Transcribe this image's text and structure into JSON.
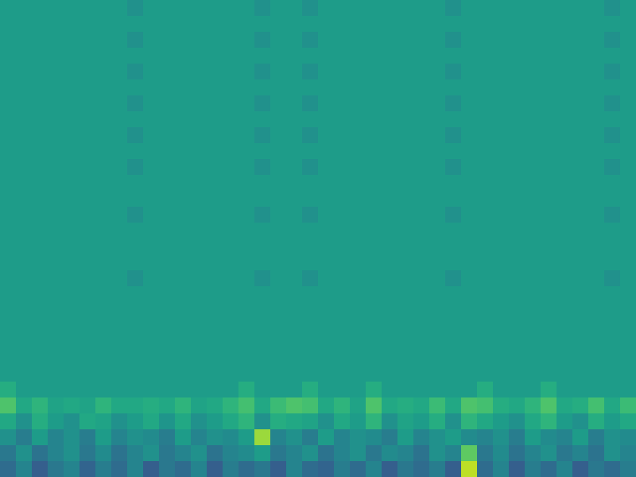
{
  "chart_data": {
    "type": "heatmap",
    "color": "viridis",
    "zlim": [
      0,
      1
    ],
    "tick_labels": false,
    "values": [
      [
        0.55,
        0.55,
        0.55,
        0.55,
        0.55,
        0.55,
        0.55,
        0.55,
        0.5,
        0.55,
        0.55,
        0.55,
        0.55,
        0.55,
        0.55,
        0.55,
        0.5,
        0.55,
        0.55,
        0.5,
        0.55,
        0.55,
        0.55,
        0.55,
        0.55,
        0.55,
        0.55,
        0.55,
        0.5,
        0.55,
        0.55,
        0.55,
        0.55,
        0.55,
        0.55,
        0.55,
        0.55,
        0.55,
        0.5,
        0.55
      ],
      [
        0.55,
        0.55,
        0.55,
        0.55,
        0.55,
        0.55,
        0.55,
        0.55,
        0.55,
        0.55,
        0.55,
        0.55,
        0.55,
        0.55,
        0.55,
        0.55,
        0.55,
        0.55,
        0.55,
        0.55,
        0.55,
        0.55,
        0.55,
        0.55,
        0.55,
        0.55,
        0.55,
        0.55,
        0.55,
        0.55,
        0.55,
        0.55,
        0.55,
        0.55,
        0.55,
        0.55,
        0.55,
        0.55,
        0.55,
        0.55
      ],
      [
        0.55,
        0.55,
        0.55,
        0.55,
        0.55,
        0.55,
        0.55,
        0.55,
        0.5,
        0.55,
        0.55,
        0.55,
        0.55,
        0.55,
        0.55,
        0.55,
        0.5,
        0.55,
        0.55,
        0.5,
        0.55,
        0.55,
        0.55,
        0.55,
        0.55,
        0.55,
        0.55,
        0.55,
        0.5,
        0.55,
        0.55,
        0.55,
        0.55,
        0.55,
        0.55,
        0.55,
        0.55,
        0.55,
        0.5,
        0.55
      ],
      [
        0.55,
        0.55,
        0.55,
        0.55,
        0.55,
        0.55,
        0.55,
        0.55,
        0.55,
        0.55,
        0.55,
        0.55,
        0.55,
        0.55,
        0.55,
        0.55,
        0.55,
        0.55,
        0.55,
        0.55,
        0.55,
        0.55,
        0.55,
        0.55,
        0.55,
        0.55,
        0.55,
        0.55,
        0.55,
        0.55,
        0.55,
        0.55,
        0.55,
        0.55,
        0.55,
        0.55,
        0.55,
        0.55,
        0.55,
        0.55
      ],
      [
        0.55,
        0.55,
        0.55,
        0.55,
        0.55,
        0.55,
        0.55,
        0.55,
        0.5,
        0.55,
        0.55,
        0.55,
        0.55,
        0.55,
        0.55,
        0.55,
        0.5,
        0.55,
        0.55,
        0.5,
        0.55,
        0.55,
        0.55,
        0.55,
        0.55,
        0.55,
        0.55,
        0.55,
        0.5,
        0.55,
        0.55,
        0.55,
        0.55,
        0.55,
        0.55,
        0.55,
        0.55,
        0.55,
        0.5,
        0.55
      ],
      [
        0.55,
        0.55,
        0.55,
        0.55,
        0.55,
        0.55,
        0.55,
        0.55,
        0.55,
        0.55,
        0.55,
        0.55,
        0.55,
        0.55,
        0.55,
        0.55,
        0.55,
        0.55,
        0.55,
        0.55,
        0.55,
        0.55,
        0.55,
        0.55,
        0.55,
        0.55,
        0.55,
        0.55,
        0.55,
        0.55,
        0.55,
        0.55,
        0.55,
        0.55,
        0.55,
        0.55,
        0.55,
        0.55,
        0.55,
        0.55
      ],
      [
        0.55,
        0.55,
        0.55,
        0.55,
        0.55,
        0.55,
        0.55,
        0.55,
        0.5,
        0.55,
        0.55,
        0.55,
        0.55,
        0.55,
        0.55,
        0.55,
        0.5,
        0.55,
        0.55,
        0.5,
        0.55,
        0.55,
        0.55,
        0.55,
        0.55,
        0.55,
        0.55,
        0.55,
        0.5,
        0.55,
        0.55,
        0.55,
        0.55,
        0.55,
        0.55,
        0.55,
        0.55,
        0.55,
        0.5,
        0.55
      ],
      [
        0.55,
        0.55,
        0.55,
        0.55,
        0.55,
        0.55,
        0.55,
        0.55,
        0.55,
        0.55,
        0.55,
        0.55,
        0.55,
        0.55,
        0.55,
        0.55,
        0.55,
        0.55,
        0.55,
        0.55,
        0.55,
        0.55,
        0.55,
        0.55,
        0.55,
        0.55,
        0.55,
        0.55,
        0.55,
        0.55,
        0.55,
        0.55,
        0.55,
        0.55,
        0.55,
        0.55,
        0.55,
        0.55,
        0.55,
        0.55
      ],
      [
        0.55,
        0.55,
        0.55,
        0.55,
        0.55,
        0.55,
        0.55,
        0.55,
        0.5,
        0.55,
        0.55,
        0.55,
        0.55,
        0.55,
        0.55,
        0.55,
        0.5,
        0.55,
        0.55,
        0.5,
        0.55,
        0.55,
        0.55,
        0.55,
        0.55,
        0.55,
        0.55,
        0.55,
        0.5,
        0.55,
        0.55,
        0.55,
        0.55,
        0.55,
        0.55,
        0.55,
        0.55,
        0.55,
        0.5,
        0.55
      ],
      [
        0.55,
        0.55,
        0.55,
        0.55,
        0.55,
        0.55,
        0.55,
        0.55,
        0.55,
        0.55,
        0.55,
        0.55,
        0.55,
        0.55,
        0.55,
        0.55,
        0.55,
        0.55,
        0.55,
        0.55,
        0.55,
        0.55,
        0.55,
        0.55,
        0.55,
        0.55,
        0.55,
        0.55,
        0.55,
        0.55,
        0.55,
        0.55,
        0.55,
        0.55,
        0.55,
        0.55,
        0.55,
        0.55,
        0.55,
        0.55
      ],
      [
        0.55,
        0.55,
        0.55,
        0.55,
        0.55,
        0.55,
        0.55,
        0.55,
        0.5,
        0.55,
        0.55,
        0.55,
        0.55,
        0.55,
        0.55,
        0.55,
        0.5,
        0.55,
        0.55,
        0.5,
        0.55,
        0.55,
        0.55,
        0.55,
        0.55,
        0.55,
        0.55,
        0.55,
        0.5,
        0.55,
        0.55,
        0.55,
        0.55,
        0.55,
        0.55,
        0.55,
        0.55,
        0.55,
        0.5,
        0.55
      ],
      [
        0.55,
        0.55,
        0.55,
        0.55,
        0.55,
        0.55,
        0.55,
        0.55,
        0.55,
        0.55,
        0.55,
        0.55,
        0.55,
        0.55,
        0.55,
        0.55,
        0.55,
        0.55,
        0.55,
        0.55,
        0.55,
        0.55,
        0.55,
        0.55,
        0.55,
        0.55,
        0.55,
        0.55,
        0.55,
        0.55,
        0.55,
        0.55,
        0.55,
        0.55,
        0.55,
        0.55,
        0.55,
        0.55,
        0.55,
        0.55
      ],
      [
        0.55,
        0.55,
        0.55,
        0.55,
        0.55,
        0.55,
        0.55,
        0.55,
        0.55,
        0.55,
        0.55,
        0.55,
        0.55,
        0.55,
        0.55,
        0.55,
        0.55,
        0.55,
        0.55,
        0.55,
        0.55,
        0.55,
        0.55,
        0.55,
        0.55,
        0.55,
        0.55,
        0.55,
        0.55,
        0.55,
        0.55,
        0.55,
        0.55,
        0.55,
        0.55,
        0.55,
        0.55,
        0.55,
        0.55,
        0.55
      ],
      [
        0.55,
        0.55,
        0.55,
        0.55,
        0.55,
        0.55,
        0.55,
        0.55,
        0.5,
        0.55,
        0.55,
        0.55,
        0.55,
        0.55,
        0.55,
        0.55,
        0.5,
        0.55,
        0.55,
        0.5,
        0.55,
        0.55,
        0.55,
        0.55,
        0.55,
        0.55,
        0.55,
        0.55,
        0.5,
        0.55,
        0.55,
        0.55,
        0.55,
        0.55,
        0.55,
        0.55,
        0.55,
        0.55,
        0.5,
        0.55
      ],
      [
        0.55,
        0.55,
        0.55,
        0.55,
        0.55,
        0.55,
        0.55,
        0.55,
        0.55,
        0.55,
        0.55,
        0.55,
        0.55,
        0.55,
        0.55,
        0.55,
        0.55,
        0.55,
        0.55,
        0.55,
        0.55,
        0.55,
        0.55,
        0.55,
        0.55,
        0.55,
        0.55,
        0.55,
        0.55,
        0.55,
        0.55,
        0.55,
        0.55,
        0.55,
        0.55,
        0.55,
        0.55,
        0.55,
        0.55,
        0.55
      ],
      [
        0.55,
        0.55,
        0.55,
        0.55,
        0.55,
        0.55,
        0.55,
        0.55,
        0.55,
        0.55,
        0.55,
        0.55,
        0.55,
        0.55,
        0.55,
        0.55,
        0.55,
        0.55,
        0.55,
        0.55,
        0.55,
        0.55,
        0.55,
        0.55,
        0.55,
        0.55,
        0.55,
        0.55,
        0.55,
        0.55,
        0.55,
        0.55,
        0.55,
        0.55,
        0.55,
        0.55,
        0.55,
        0.55,
        0.55,
        0.55
      ],
      [
        0.55,
        0.55,
        0.55,
        0.55,
        0.55,
        0.55,
        0.55,
        0.55,
        0.55,
        0.55,
        0.55,
        0.55,
        0.55,
        0.55,
        0.55,
        0.55,
        0.55,
        0.55,
        0.55,
        0.55,
        0.55,
        0.55,
        0.55,
        0.55,
        0.55,
        0.55,
        0.55,
        0.55,
        0.55,
        0.55,
        0.55,
        0.55,
        0.55,
        0.55,
        0.55,
        0.55,
        0.55,
        0.55,
        0.55,
        0.55
      ],
      [
        0.55,
        0.55,
        0.55,
        0.55,
        0.55,
        0.55,
        0.55,
        0.55,
        0.5,
        0.55,
        0.55,
        0.55,
        0.55,
        0.55,
        0.55,
        0.55,
        0.5,
        0.55,
        0.55,
        0.5,
        0.55,
        0.55,
        0.55,
        0.55,
        0.55,
        0.55,
        0.55,
        0.55,
        0.5,
        0.55,
        0.55,
        0.55,
        0.55,
        0.55,
        0.55,
        0.55,
        0.55,
        0.55,
        0.5,
        0.55
      ],
      [
        0.55,
        0.55,
        0.55,
        0.55,
        0.55,
        0.55,
        0.55,
        0.55,
        0.55,
        0.55,
        0.55,
        0.55,
        0.55,
        0.55,
        0.55,
        0.55,
        0.55,
        0.55,
        0.55,
        0.55,
        0.55,
        0.55,
        0.55,
        0.55,
        0.55,
        0.55,
        0.55,
        0.55,
        0.55,
        0.55,
        0.55,
        0.55,
        0.55,
        0.55,
        0.55,
        0.55,
        0.55,
        0.55,
        0.55,
        0.55
      ],
      [
        0.55,
        0.55,
        0.55,
        0.55,
        0.55,
        0.55,
        0.55,
        0.55,
        0.55,
        0.55,
        0.55,
        0.55,
        0.55,
        0.55,
        0.55,
        0.55,
        0.55,
        0.55,
        0.55,
        0.55,
        0.55,
        0.55,
        0.55,
        0.55,
        0.55,
        0.55,
        0.55,
        0.55,
        0.55,
        0.55,
        0.55,
        0.55,
        0.55,
        0.55,
        0.55,
        0.55,
        0.55,
        0.55,
        0.55,
        0.55
      ],
      [
        0.55,
        0.55,
        0.55,
        0.55,
        0.55,
        0.55,
        0.55,
        0.55,
        0.55,
        0.55,
        0.55,
        0.55,
        0.55,
        0.55,
        0.55,
        0.55,
        0.55,
        0.55,
        0.55,
        0.55,
        0.55,
        0.55,
        0.55,
        0.55,
        0.55,
        0.55,
        0.55,
        0.55,
        0.55,
        0.55,
        0.55,
        0.55,
        0.55,
        0.55,
        0.55,
        0.55,
        0.55,
        0.55,
        0.55,
        0.55
      ],
      [
        0.55,
        0.55,
        0.55,
        0.55,
        0.55,
        0.55,
        0.55,
        0.55,
        0.55,
        0.55,
        0.55,
        0.55,
        0.55,
        0.55,
        0.55,
        0.55,
        0.55,
        0.55,
        0.55,
        0.55,
        0.55,
        0.55,
        0.55,
        0.55,
        0.55,
        0.55,
        0.55,
        0.55,
        0.55,
        0.55,
        0.55,
        0.55,
        0.55,
        0.55,
        0.55,
        0.55,
        0.55,
        0.55,
        0.55,
        0.55
      ],
      [
        0.55,
        0.55,
        0.55,
        0.55,
        0.55,
        0.55,
        0.55,
        0.55,
        0.55,
        0.55,
        0.55,
        0.55,
        0.55,
        0.55,
        0.55,
        0.55,
        0.55,
        0.55,
        0.55,
        0.55,
        0.55,
        0.55,
        0.55,
        0.55,
        0.55,
        0.55,
        0.55,
        0.55,
        0.55,
        0.55,
        0.55,
        0.55,
        0.55,
        0.55,
        0.55,
        0.55,
        0.55,
        0.55,
        0.55,
        0.55
      ],
      [
        0.55,
        0.55,
        0.55,
        0.55,
        0.55,
        0.55,
        0.55,
        0.55,
        0.55,
        0.55,
        0.55,
        0.55,
        0.55,
        0.55,
        0.55,
        0.55,
        0.55,
        0.55,
        0.55,
        0.55,
        0.55,
        0.55,
        0.55,
        0.55,
        0.55,
        0.55,
        0.55,
        0.55,
        0.55,
        0.55,
        0.55,
        0.55,
        0.55,
        0.55,
        0.55,
        0.55,
        0.55,
        0.55,
        0.55,
        0.55
      ],
      [
        0.62,
        0.55,
        0.55,
        0.55,
        0.55,
        0.55,
        0.55,
        0.55,
        0.55,
        0.55,
        0.55,
        0.55,
        0.55,
        0.55,
        0.55,
        0.62,
        0.55,
        0.55,
        0.55,
        0.62,
        0.55,
        0.55,
        0.55,
        0.62,
        0.55,
        0.55,
        0.55,
        0.55,
        0.55,
        0.55,
        0.62,
        0.55,
        0.55,
        0.55,
        0.62,
        0.55,
        0.55,
        0.55,
        0.55,
        0.55
      ],
      [
        0.72,
        0.6,
        0.65,
        0.58,
        0.6,
        0.58,
        0.65,
        0.6,
        0.6,
        0.62,
        0.6,
        0.65,
        0.58,
        0.6,
        0.65,
        0.7,
        0.6,
        0.68,
        0.72,
        0.7,
        0.6,
        0.65,
        0.58,
        0.72,
        0.6,
        0.62,
        0.6,
        0.68,
        0.6,
        0.72,
        0.7,
        0.62,
        0.6,
        0.65,
        0.72,
        0.6,
        0.62,
        0.7,
        0.6,
        0.68
      ],
      [
        0.6,
        0.5,
        0.62,
        0.55,
        0.5,
        0.6,
        0.58,
        0.5,
        0.55,
        0.6,
        0.52,
        0.6,
        0.5,
        0.55,
        0.6,
        0.65,
        0.5,
        0.62,
        0.6,
        0.58,
        0.5,
        0.6,
        0.55,
        0.65,
        0.5,
        0.58,
        0.55,
        0.62,
        0.5,
        0.65,
        0.6,
        0.55,
        0.5,
        0.6,
        0.65,
        0.55,
        0.5,
        0.62,
        0.55,
        0.6
      ],
      [
        0.5,
        0.42,
        0.55,
        0.45,
        0.5,
        0.42,
        0.55,
        0.45,
        0.5,
        0.48,
        0.42,
        0.55,
        0.45,
        0.5,
        0.48,
        0.55,
        0.85,
        0.45,
        0.5,
        0.42,
        0.55,
        0.45,
        0.5,
        0.48,
        0.42,
        0.55,
        0.45,
        0.5,
        0.55,
        0.48,
        0.45,
        0.5,
        0.42,
        0.55,
        0.48,
        0.45,
        0.55,
        0.42,
        0.5,
        0.48
      ],
      [
        0.4,
        0.5,
        0.38,
        0.45,
        0.5,
        0.4,
        0.48,
        0.38,
        0.45,
        0.5,
        0.4,
        0.45,
        0.5,
        0.38,
        0.45,
        0.48,
        0.55,
        0.4,
        0.45,
        0.5,
        0.38,
        0.45,
        0.5,
        0.4,
        0.48,
        0.45,
        0.38,
        0.5,
        0.45,
        0.75,
        0.4,
        0.48,
        0.38,
        0.45,
        0.5,
        0.4,
        0.45,
        0.38,
        0.5,
        0.45
      ],
      [
        0.35,
        0.45,
        0.3,
        0.4,
        0.45,
        0.32,
        0.42,
        0.35,
        0.45,
        0.3,
        0.4,
        0.35,
        0.45,
        0.3,
        0.42,
        0.35,
        0.4,
        0.3,
        0.45,
        0.35,
        0.32,
        0.42,
        0.35,
        0.45,
        0.3,
        0.4,
        0.35,
        0.42,
        0.3,
        0.9,
        0.35,
        0.45,
        0.3,
        0.42,
        0.35,
        0.45,
        0.3,
        0.4,
        0.35,
        0.42
      ]
    ]
  }
}
